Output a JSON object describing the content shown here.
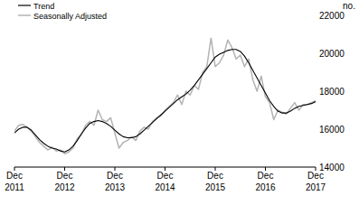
{
  "chart_data": {
    "type": "line",
    "y_label": "no.",
    "categories": [
      "Dec 2011",
      null,
      null,
      null,
      null,
      null,
      null,
      null,
      null,
      null,
      null,
      null,
      "Dec 2012",
      null,
      null,
      null,
      null,
      null,
      null,
      null,
      null,
      null,
      null,
      null,
      "Dec 2013",
      null,
      null,
      null,
      null,
      null,
      null,
      null,
      null,
      null,
      null,
      null,
      "Dec 2014",
      null,
      null,
      null,
      null,
      null,
      null,
      null,
      null,
      null,
      null,
      null,
      "Dec 2015",
      null,
      null,
      null,
      null,
      null,
      null,
      null,
      null,
      null,
      null,
      null,
      "Dec 2016",
      null,
      null,
      null,
      null,
      null,
      null,
      null,
      null,
      null,
      null,
      null,
      "Dec 2017"
    ],
    "series": [
      {
        "name": "Trend",
        "color": "#000000",
        "values": [
          15800,
          16000,
          16100,
          16100,
          15950,
          15700,
          15450,
          15250,
          15100,
          15000,
          14950,
          14850,
          14800,
          14900,
          15100,
          15400,
          15750,
          16050,
          16300,
          16400,
          16450,
          16400,
          16300,
          16150,
          15950,
          15750,
          15600,
          15550,
          15550,
          15600,
          15750,
          15950,
          16150,
          16350,
          16550,
          16750,
          16950,
          17150,
          17350,
          17550,
          17700,
          17850,
          18050,
          18300,
          18600,
          18900,
          19200,
          19500,
          19800,
          19950,
          20050,
          20150,
          20200,
          20200,
          20100,
          19850,
          19500,
          19100,
          18700,
          18300,
          17900,
          17500,
          17200,
          16950,
          16850,
          16850,
          16950,
          17100,
          17200,
          17250,
          17300,
          17350,
          17450
        ]
      },
      {
        "name": "Seasonally Adjusted",
        "color": "#b3b3b3",
        "values": [
          15900,
          16200,
          16250,
          16100,
          15900,
          15600,
          15300,
          15100,
          14900,
          15050,
          14850,
          14900,
          14700,
          14800,
          15000,
          15500,
          15700,
          16200,
          16400,
          16200,
          17000,
          16500,
          16400,
          16600,
          15800,
          15000,
          15300,
          15400,
          15600,
          15400,
          15900,
          16100,
          16000,
          16400,
          16600,
          16700,
          17000,
          17200,
          17400,
          17800,
          17300,
          18000,
          17800,
          18300,
          18100,
          19000,
          19300,
          20800,
          19300,
          19500,
          19900,
          20700,
          20300,
          19700,
          19900,
          19300,
          19700,
          18600,
          18000,
          18800,
          17700,
          17400,
          16500,
          17000,
          16900,
          16800,
          17100,
          17400,
          17000,
          17300,
          17300,
          17400,
          17500
        ]
      }
    ],
    "ylim": [
      14000,
      22000
    ],
    "yticks": [
      14000,
      16000,
      18000,
      20000,
      22000
    ],
    "grid": false,
    "legend": "top-left"
  }
}
